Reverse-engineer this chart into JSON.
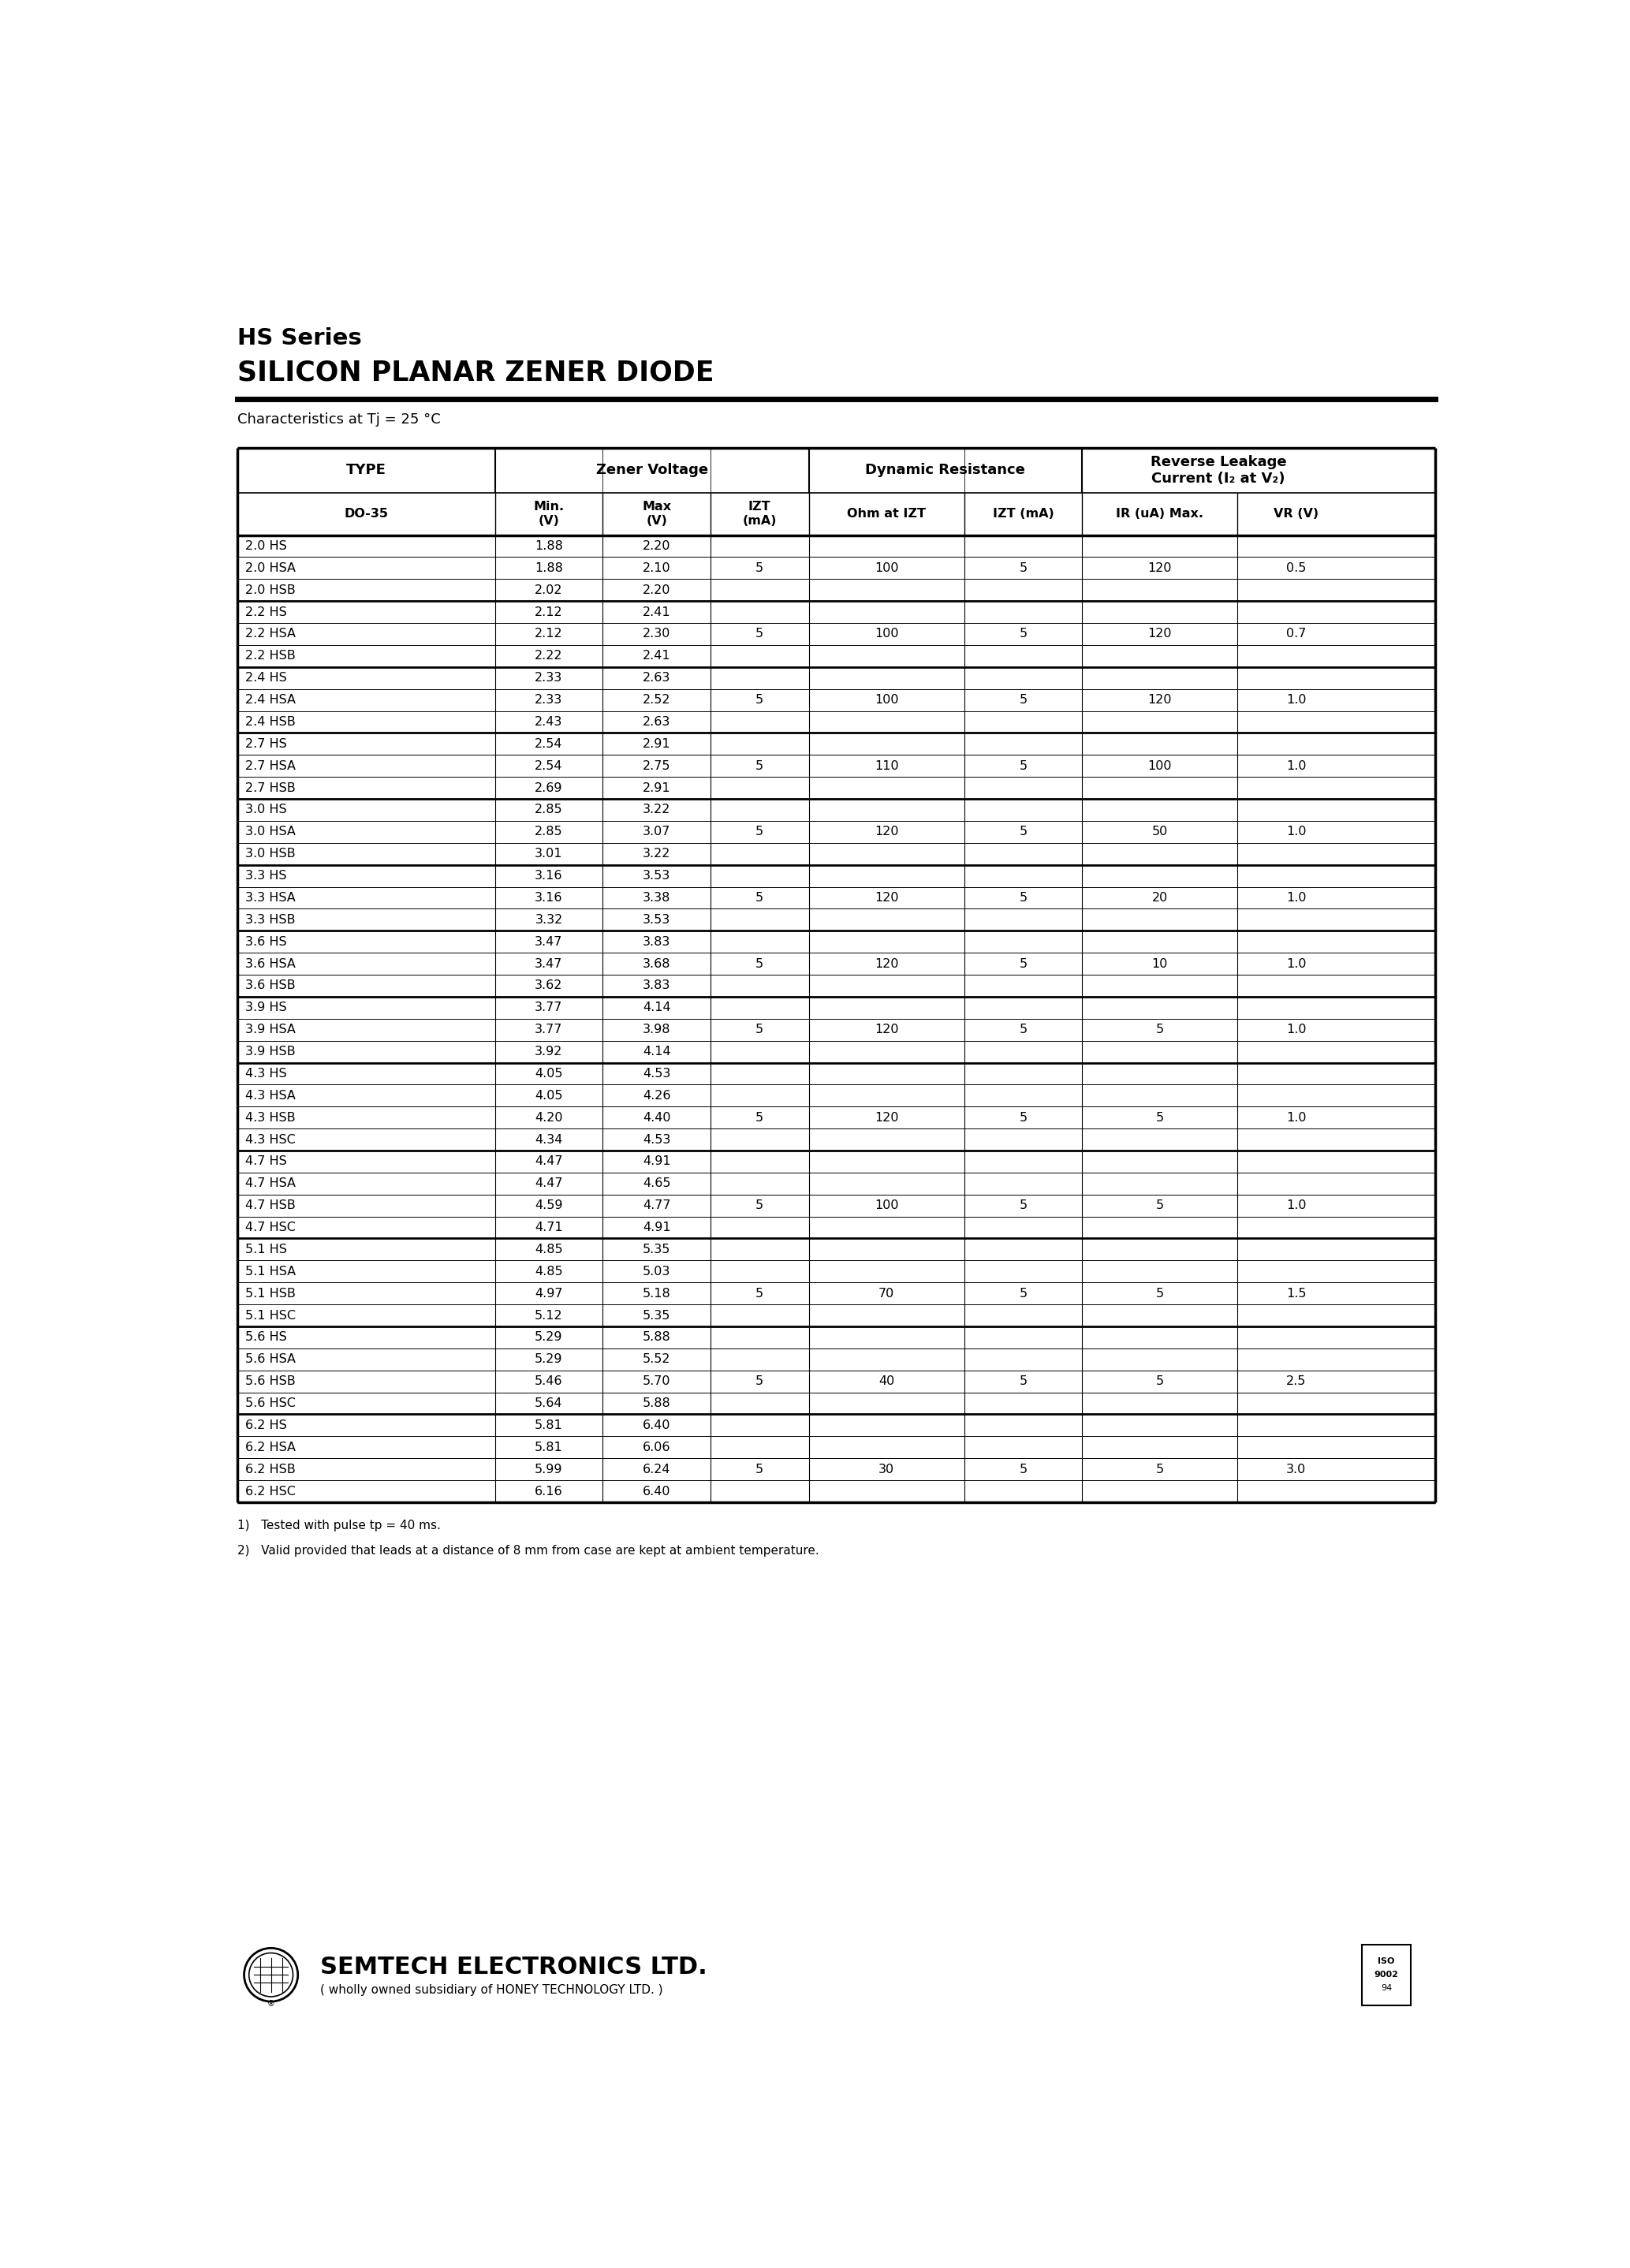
{
  "title_line1": "HS Series",
  "title_line2": "SILICON PLANAR ZENER DIODE",
  "subtitle": "Characteristics at Tj = 25 °C",
  "rows": [
    [
      "2.0 HS",
      "1.88",
      "2.20",
      "",
      "",
      "",
      "",
      ""
    ],
    [
      "2.0 HSA",
      "1.88",
      "2.10",
      "5",
      "100",
      "5",
      "120",
      "0.5"
    ],
    [
      "2.0 HSB",
      "2.02",
      "2.20",
      "",
      "",
      "",
      "",
      ""
    ],
    [
      "2.2 HS",
      "2.12",
      "2.41",
      "",
      "",
      "",
      "",
      ""
    ],
    [
      "2.2 HSA",
      "2.12",
      "2.30",
      "5",
      "100",
      "5",
      "120",
      "0.7"
    ],
    [
      "2.2 HSB",
      "2.22",
      "2.41",
      "",
      "",
      "",
      "",
      ""
    ],
    [
      "2.4 HS",
      "2.33",
      "2.63",
      "",
      "",
      "",
      "",
      ""
    ],
    [
      "2.4 HSA",
      "2.33",
      "2.52",
      "5",
      "100",
      "5",
      "120",
      "1.0"
    ],
    [
      "2.4 HSB",
      "2.43",
      "2.63",
      "",
      "",
      "",
      "",
      ""
    ],
    [
      "2.7 HS",
      "2.54",
      "2.91",
      "",
      "",
      "",
      "",
      ""
    ],
    [
      "2.7 HSA",
      "2.54",
      "2.75",
      "5",
      "110",
      "5",
      "100",
      "1.0"
    ],
    [
      "2.7 HSB",
      "2.69",
      "2.91",
      "",
      "",
      "",
      "",
      ""
    ],
    [
      "3.0 HS",
      "2.85",
      "3.22",
      "",
      "",
      "",
      "",
      ""
    ],
    [
      "3.0 HSA",
      "2.85",
      "3.07",
      "5",
      "120",
      "5",
      "50",
      "1.0"
    ],
    [
      "3.0 HSB",
      "3.01",
      "3.22",
      "",
      "",
      "",
      "",
      ""
    ],
    [
      "3.3 HS",
      "3.16",
      "3.53",
      "",
      "",
      "",
      "",
      ""
    ],
    [
      "3.3 HSA",
      "3.16",
      "3.38",
      "5",
      "120",
      "5",
      "20",
      "1.0"
    ],
    [
      "3.3 HSB",
      "3.32",
      "3.53",
      "",
      "",
      "",
      "",
      ""
    ],
    [
      "3.6 HS",
      "3.47",
      "3.83",
      "",
      "",
      "",
      "",
      ""
    ],
    [
      "3.6 HSA",
      "3.47",
      "3.68",
      "5",
      "120",
      "5",
      "10",
      "1.0"
    ],
    [
      "3.6 HSB",
      "3.62",
      "3.83",
      "",
      "",
      "",
      "",
      ""
    ],
    [
      "3.9 HS",
      "3.77",
      "4.14",
      "",
      "",
      "",
      "",
      ""
    ],
    [
      "3.9 HSA",
      "3.77",
      "3.98",
      "5",
      "120",
      "5",
      "5",
      "1.0"
    ],
    [
      "3.9 HSB",
      "3.92",
      "4.14",
      "",
      "",
      "",
      "",
      ""
    ],
    [
      "4.3 HS",
      "4.05",
      "4.53",
      "",
      "",
      "",
      "",
      ""
    ],
    [
      "4.3 HSA",
      "4.05",
      "4.26",
      "",
      "",
      "",
      "",
      ""
    ],
    [
      "4.3 HSB",
      "4.20",
      "4.40",
      "5",
      "120",
      "5",
      "5",
      "1.0"
    ],
    [
      "4.3 HSC",
      "4.34",
      "4.53",
      "",
      "",
      "",
      "",
      ""
    ],
    [
      "4.7 HS",
      "4.47",
      "4.91",
      "",
      "",
      "",
      "",
      ""
    ],
    [
      "4.7 HSA",
      "4.47",
      "4.65",
      "",
      "",
      "",
      "",
      ""
    ],
    [
      "4.7 HSB",
      "4.59",
      "4.77",
      "5",
      "100",
      "5",
      "5",
      "1.0"
    ],
    [
      "4.7 HSC",
      "4.71",
      "4.91",
      "",
      "",
      "",
      "",
      ""
    ],
    [
      "5.1 HS",
      "4.85",
      "5.35",
      "",
      "",
      "",
      "",
      ""
    ],
    [
      "5.1 HSA",
      "4.85",
      "5.03",
      "",
      "",
      "",
      "",
      ""
    ],
    [
      "5.1 HSB",
      "4.97",
      "5.18",
      "5",
      "70",
      "5",
      "5",
      "1.5"
    ],
    [
      "5.1 HSC",
      "5.12",
      "5.35",
      "",
      "",
      "",
      "",
      ""
    ],
    [
      "5.6 HS",
      "5.29",
      "5.88",
      "",
      "",
      "",
      "",
      ""
    ],
    [
      "5.6 HSA",
      "5.29",
      "5.52",
      "",
      "",
      "",
      "",
      ""
    ],
    [
      "5.6 HSB",
      "5.46",
      "5.70",
      "5",
      "40",
      "5",
      "5",
      "2.5"
    ],
    [
      "5.6 HSC",
      "5.64",
      "5.88",
      "",
      "",
      "",
      "",
      ""
    ],
    [
      "6.2 HS",
      "5.81",
      "6.40",
      "",
      "",
      "",
      "",
      ""
    ],
    [
      "6.2 HSA",
      "5.81",
      "6.06",
      "",
      "",
      "",
      "",
      ""
    ],
    [
      "6.2 HSB",
      "5.99",
      "6.24",
      "5",
      "30",
      "5",
      "5",
      "3.0"
    ],
    [
      "6.2 HSC",
      "6.16",
      "6.40",
      "",
      "",
      "",
      "",
      ""
    ]
  ],
  "group_ends": [
    2,
    5,
    8,
    11,
    14,
    17,
    20,
    23,
    27,
    31,
    35,
    39,
    43
  ],
  "footnote1": "1)   Tested with pulse tp = 40 ms.",
  "footnote2": "2)   Valid provided that leads at a distance of 8 mm from case are kept at ambient temperature.",
  "company": "SEMTECH ELECTRONICS LTD.",
  "subsidiary": "( wholly owned subsidiary of HONEY TECHNOLOGY LTD. )",
  "bg_color": "#ffffff",
  "text_color": "#000000"
}
